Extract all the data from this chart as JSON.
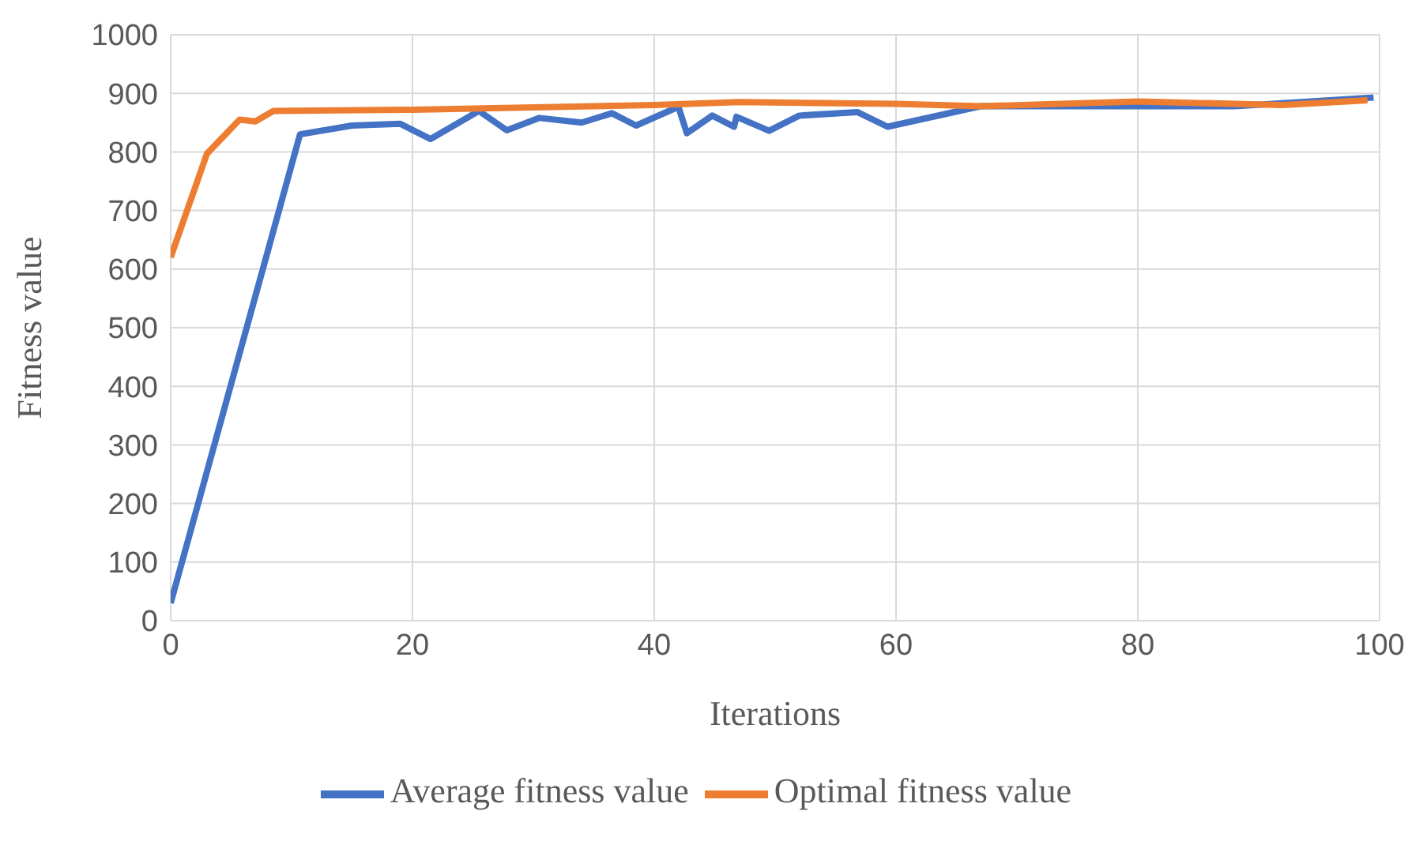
{
  "chart_data": {
    "type": "line",
    "xlabel": "Iterations",
    "ylabel": "Fitness value",
    "xlim": [
      0,
      100
    ],
    "xticks": [
      0,
      20,
      40,
      60,
      80,
      100
    ],
    "ylim": [
      0,
      1000
    ],
    "yticks": [
      0,
      100,
      200,
      300,
      400,
      500,
      600,
      700,
      800,
      900,
      1000
    ],
    "grid": true,
    "legend": "bottom",
    "marker": "none",
    "line_style": "solid",
    "series": [
      {
        "name": "Average fitness value",
        "color": "#4472c4",
        "x": [
          0,
          10.7,
          15,
          19,
          21.5,
          25.5,
          27.8,
          30.5,
          34,
          36.5,
          38.5,
          42,
          42.7,
          44.8,
          46.6,
          46.8,
          49.5,
          52,
          56.8,
          59.3,
          67,
          88,
          99.5
        ],
        "values": [
          30,
          830,
          845,
          848,
          822,
          870,
          837,
          858,
          850,
          866,
          845,
          877,
          832,
          862,
          843,
          860,
          836,
          862,
          868,
          843,
          878,
          878,
          893
        ]
      },
      {
        "name": "Optimal fitness value",
        "color": "#ed7d31",
        "x": [
          0,
          3,
          5.7,
          7,
          8.5,
          20,
          40,
          47,
          60,
          67,
          80,
          92,
          99
        ],
        "values": [
          620,
          797,
          855,
          852,
          870,
          872,
          880,
          885,
          882,
          878,
          886,
          880,
          888
        ]
      }
    ]
  }
}
